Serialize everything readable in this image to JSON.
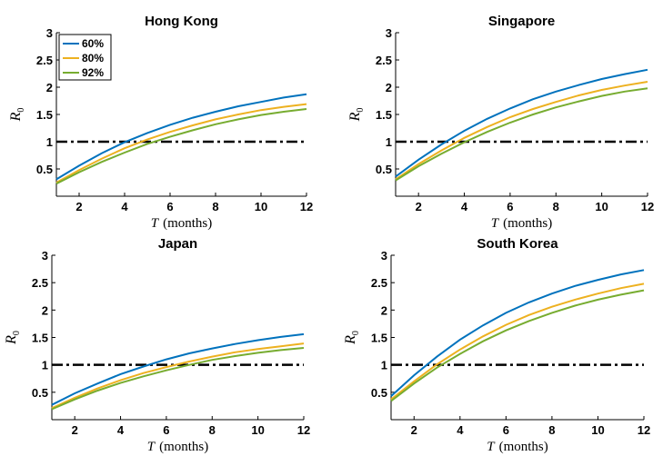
{
  "chart_data": [
    {
      "type": "line",
      "title": "Hong Kong",
      "xlabel_var": "T",
      "xlabel_unit": "(months)",
      "ylabel": "R0",
      "xlim": [
        1,
        12
      ],
      "ylim": [
        0,
        3
      ],
      "xticks": [
        2,
        4,
        6,
        8,
        10,
        12
      ],
      "yticks": [
        0.5,
        1,
        1.5,
        2,
        2.5,
        3
      ],
      "threshold": 1,
      "legend": true,
      "series": [
        {
          "name": "60%",
          "color": "#0072bd",
          "x": [
            1,
            2,
            3,
            4,
            5,
            6,
            7,
            8,
            9,
            10,
            11,
            12
          ],
          "values": [
            0.31,
            0.56,
            0.79,
            0.99,
            1.16,
            1.31,
            1.44,
            1.55,
            1.65,
            1.73,
            1.81,
            1.87
          ]
        },
        {
          "name": "80%",
          "color": "#edb120",
          "x": [
            1,
            2,
            3,
            4,
            5,
            6,
            7,
            8,
            9,
            10,
            11,
            12
          ],
          "values": [
            0.25,
            0.48,
            0.69,
            0.88,
            1.04,
            1.18,
            1.3,
            1.41,
            1.5,
            1.58,
            1.64,
            1.69
          ]
        },
        {
          "name": "92%",
          "color": "#77ac30",
          "x": [
            1,
            2,
            3,
            4,
            5,
            6,
            7,
            8,
            9,
            10,
            11,
            12
          ],
          "values": [
            0.23,
            0.44,
            0.63,
            0.8,
            0.96,
            1.09,
            1.21,
            1.32,
            1.41,
            1.49,
            1.55,
            1.6
          ]
        }
      ]
    },
    {
      "type": "line",
      "title": "Singapore",
      "xlabel_var": "T",
      "xlabel_unit": "(months)",
      "ylabel": "R0",
      "xlim": [
        1,
        12
      ],
      "ylim": [
        0,
        3
      ],
      "xticks": [
        2,
        4,
        6,
        8,
        10,
        12
      ],
      "yticks": [
        0.5,
        1,
        1.5,
        2,
        2.5,
        3
      ],
      "threshold": 1,
      "legend": false,
      "series": [
        {
          "name": "60%",
          "color": "#0072bd",
          "x": [
            1,
            2,
            3,
            4,
            5,
            6,
            7,
            8,
            9,
            10,
            11,
            12
          ],
          "values": [
            0.36,
            0.67,
            0.95,
            1.2,
            1.42,
            1.61,
            1.78,
            1.92,
            2.04,
            2.15,
            2.24,
            2.32
          ]
        },
        {
          "name": "80%",
          "color": "#edb120",
          "x": [
            1,
            2,
            3,
            4,
            5,
            6,
            7,
            8,
            9,
            10,
            11,
            12
          ],
          "values": [
            0.31,
            0.59,
            0.84,
            1.07,
            1.27,
            1.45,
            1.6,
            1.73,
            1.85,
            1.95,
            2.03,
            2.1
          ]
        },
        {
          "name": "92%",
          "color": "#77ac30",
          "x": [
            1,
            2,
            3,
            4,
            5,
            6,
            7,
            8,
            9,
            10,
            11,
            12
          ],
          "values": [
            0.29,
            0.55,
            0.78,
            0.99,
            1.18,
            1.35,
            1.5,
            1.63,
            1.74,
            1.84,
            1.92,
            1.98
          ]
        }
      ]
    },
    {
      "type": "line",
      "title": "Japan",
      "xlabel_var": "T",
      "xlabel_unit": "(months)",
      "ylabel": "R0",
      "xlim": [
        1,
        12
      ],
      "ylim": [
        0,
        3
      ],
      "xticks": [
        2,
        4,
        6,
        8,
        10,
        12
      ],
      "yticks": [
        0.5,
        1,
        1.5,
        2,
        2.5,
        3
      ],
      "threshold": 1,
      "legend": false,
      "series": [
        {
          "name": "60%",
          "color": "#0072bd",
          "x": [
            1,
            2,
            3,
            4,
            5,
            6,
            7,
            8,
            9,
            10,
            11,
            12
          ],
          "values": [
            0.27,
            0.48,
            0.66,
            0.83,
            0.97,
            1.1,
            1.21,
            1.3,
            1.38,
            1.45,
            1.51,
            1.56
          ]
        },
        {
          "name": "80%",
          "color": "#edb120",
          "x": [
            1,
            2,
            3,
            4,
            5,
            6,
            7,
            8,
            9,
            10,
            11,
            12
          ],
          "values": [
            0.21,
            0.4,
            0.57,
            0.72,
            0.85,
            0.96,
            1.06,
            1.15,
            1.23,
            1.29,
            1.34,
            1.39
          ]
        },
        {
          "name": "92%",
          "color": "#77ac30",
          "x": [
            1,
            2,
            3,
            4,
            5,
            6,
            7,
            8,
            9,
            10,
            11,
            12
          ],
          "values": [
            0.19,
            0.37,
            0.53,
            0.67,
            0.79,
            0.9,
            1.0,
            1.09,
            1.16,
            1.22,
            1.27,
            1.31
          ]
        }
      ]
    },
    {
      "type": "line",
      "title": "South Korea",
      "xlabel_var": "T",
      "xlabel_unit": "(months)",
      "ylabel": "R0",
      "xlim": [
        1,
        12
      ],
      "ylim": [
        0,
        3
      ],
      "xticks": [
        2,
        4,
        6,
        8,
        10,
        12
      ],
      "yticks": [
        0.5,
        1,
        1.5,
        2,
        2.5,
        3
      ],
      "threshold": 1,
      "legend": false,
      "series": [
        {
          "name": "60%",
          "color": "#0072bd",
          "x": [
            1,
            2,
            3,
            4,
            5,
            6,
            7,
            8,
            9,
            10,
            11,
            12
          ],
          "values": [
            0.43,
            0.81,
            1.15,
            1.46,
            1.72,
            1.95,
            2.14,
            2.3,
            2.44,
            2.55,
            2.65,
            2.73
          ]
        },
        {
          "name": "80%",
          "color": "#edb120",
          "x": [
            1,
            2,
            3,
            4,
            5,
            6,
            7,
            8,
            9,
            10,
            11,
            12
          ],
          "values": [
            0.37,
            0.7,
            1.01,
            1.28,
            1.52,
            1.73,
            1.91,
            2.06,
            2.19,
            2.3,
            2.4,
            2.48
          ]
        },
        {
          "name": "92%",
          "color": "#77ac30",
          "x": [
            1,
            2,
            3,
            4,
            5,
            6,
            7,
            8,
            9,
            10,
            11,
            12
          ],
          "values": [
            0.34,
            0.66,
            0.95,
            1.2,
            1.43,
            1.63,
            1.8,
            1.95,
            2.08,
            2.19,
            2.28,
            2.36
          ]
        }
      ]
    }
  ]
}
